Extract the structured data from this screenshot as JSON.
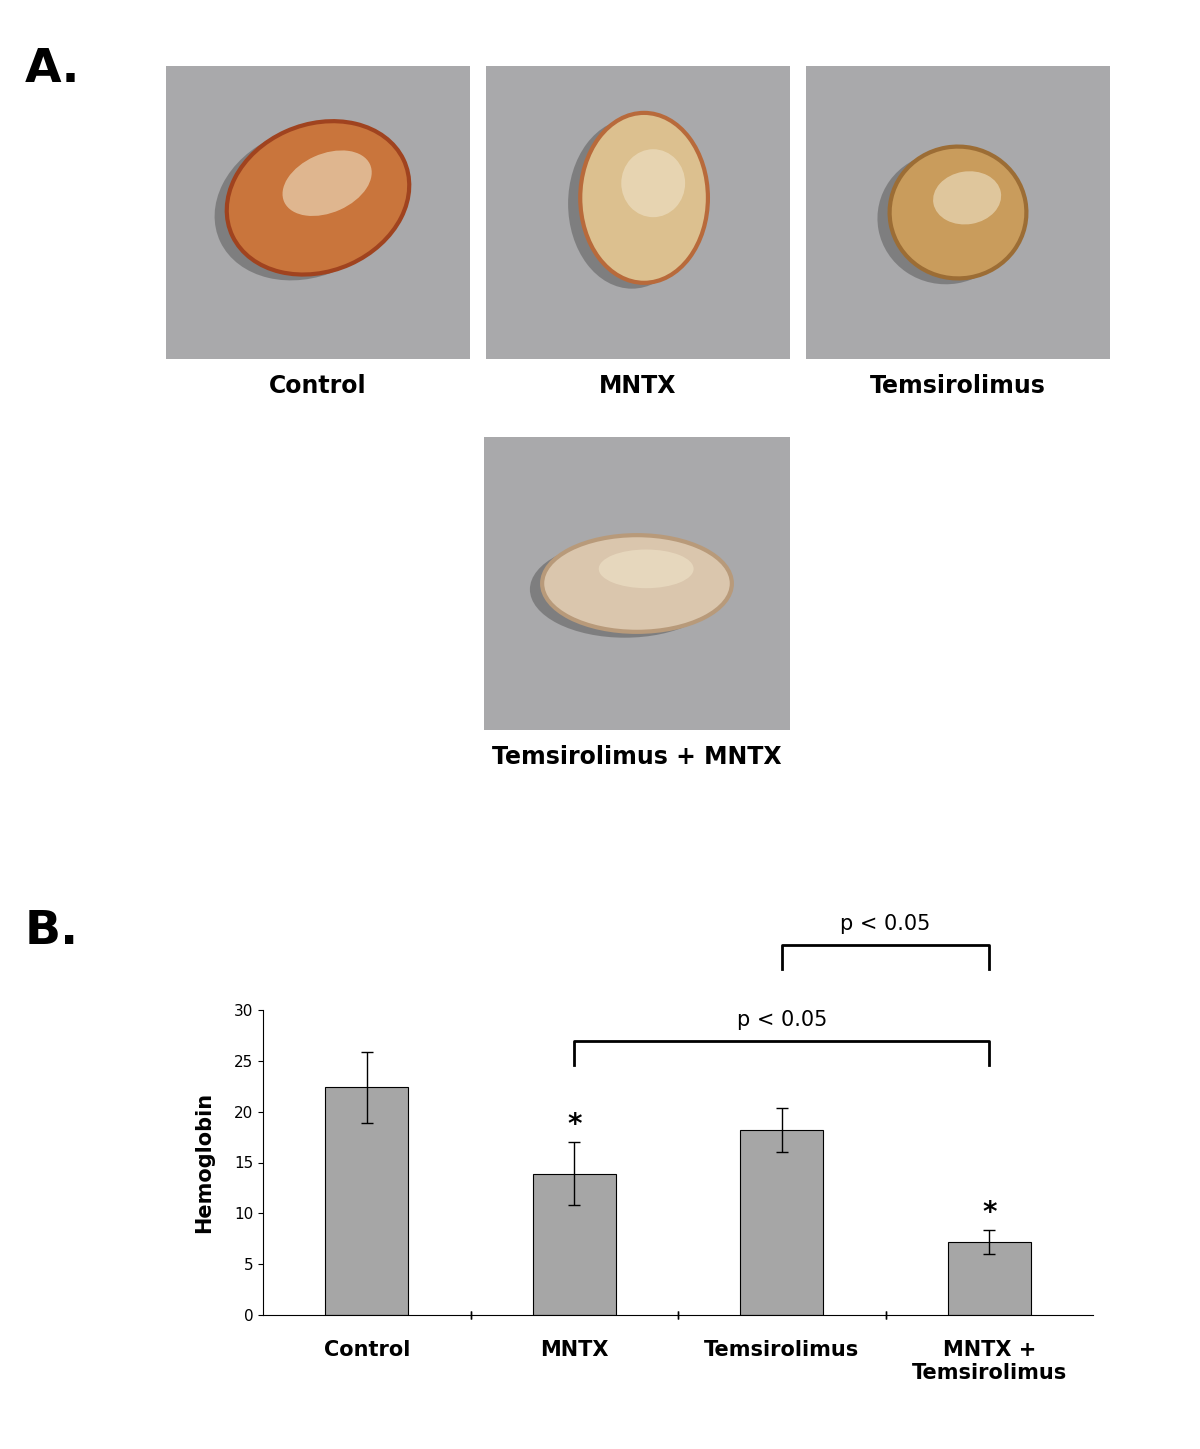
{
  "panels": {
    "A": {
      "label": "A.",
      "captions": [
        "Control",
        "MNTX",
        "Temsirolimus",
        "Temsirolimus + MNTX"
      ]
    },
    "B": {
      "label": "B."
    }
  },
  "chart_data": {
    "type": "bar",
    "y_label": "Hemoglobin",
    "categories": [
      "Control",
      "MNTX",
      "Temsirolimus",
      "MNTX + Temsirolimus"
    ],
    "values": [
      22.4,
      13.9,
      18.2,
      7.2
    ],
    "errors": [
      3.5,
      3.1,
      2.2,
      1.2
    ],
    "color": "#a6a6a6",
    "ylim": [
      0,
      30
    ],
    "yticks": [
      0,
      5,
      10,
      15,
      20,
      25,
      30
    ],
    "grid": false,
    "annotations": [
      {
        "category": "MNTX",
        "text": "*"
      },
      {
        "category": "MNTX + Temsirolimus",
        "text": "*"
      }
    ],
    "comparisons": [
      {
        "from": "MNTX",
        "to": "MNTX + Temsirolimus",
        "label": "p < 0.05"
      },
      {
        "from": "Temsirolimus",
        "to": "MNTX + Temsirolimus",
        "label": "p < 0.05"
      }
    ]
  }
}
